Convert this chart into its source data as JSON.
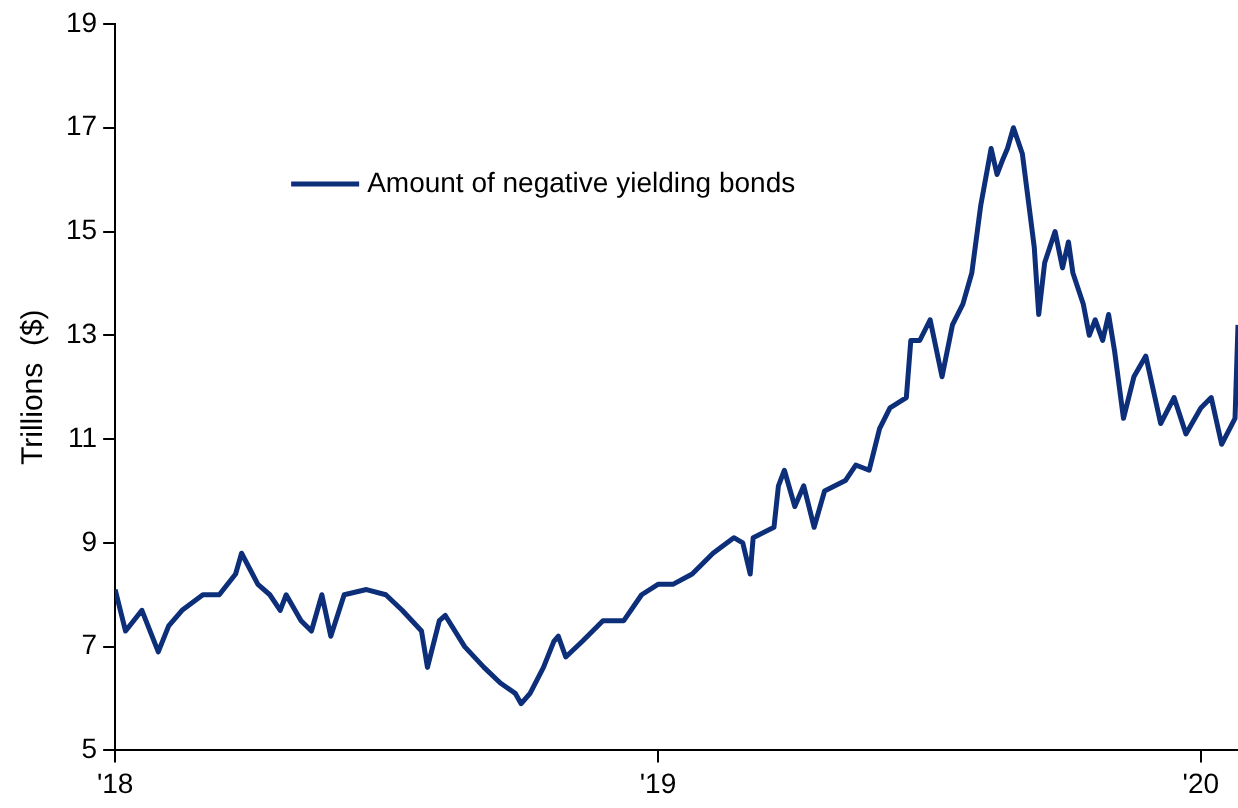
{
  "chart_data": {
    "type": "line",
    "ylabel": "Trillions  ($)",
    "legend": "top left",
    "grid": false,
    "marker": "none",
    "line_style": "solid",
    "xlim": [
      "2018-01-01",
      "2020-01-26"
    ],
    "xticks": [
      {
        "value": "2018-01-01",
        "label": "'18"
      },
      {
        "value": "2019-01-01",
        "label": "'19"
      },
      {
        "value": "2020-01-01",
        "label": "'20"
      }
    ],
    "ylim": [
      5,
      19
    ],
    "yticks": [
      5,
      7,
      9,
      11,
      13,
      15,
      17,
      19
    ],
    "series": [
      {
        "name": "Amount of negative yielding bonds",
        "color": "#0d2f7a",
        "x": [
          "2018-01-01",
          "2018-01-08",
          "2018-01-19",
          "2018-01-30",
          "2018-02-06",
          "2018-02-15",
          "2018-03-01",
          "2018-03-12",
          "2018-03-23",
          "2018-03-27",
          "2018-04-07",
          "2018-04-15",
          "2018-04-22",
          "2018-04-26",
          "2018-05-06",
          "2018-05-13",
          "2018-05-20",
          "2018-05-26",
          "2018-06-04",
          "2018-06-19",
          "2018-07-02",
          "2018-07-13",
          "2018-07-26",
          "2018-07-30",
          "2018-08-07",
          "2018-08-11",
          "2018-08-24",
          "2018-09-06",
          "2018-09-17",
          "2018-09-27",
          "2018-10-01",
          "2018-10-07",
          "2018-10-16",
          "2018-10-23",
          "2018-10-26",
          "2018-10-31",
          "2018-11-11",
          "2018-11-25",
          "2018-12-09",
          "2018-12-21",
          "2019-01-01",
          "2019-01-11",
          "2019-01-24",
          "2019-02-07",
          "2019-02-21",
          "2019-02-27",
          "2019-03-04",
          "2019-03-06",
          "2019-03-20",
          "2019-03-23",
          "2019-03-27",
          "2019-04-03",
          "2019-04-09",
          "2019-04-16",
          "2019-04-23",
          "2019-05-07",
          "2019-05-14",
          "2019-05-23",
          "2019-05-30",
          "2019-06-06",
          "2019-06-17",
          "2019-06-20",
          "2019-06-26",
          "2019-07-03",
          "2019-07-11",
          "2019-07-18",
          "2019-07-25",
          "2019-07-31",
          "2019-08-06",
          "2019-08-13",
          "2019-08-17",
          "2019-08-21",
          "2019-08-24",
          "2019-08-28",
          "2019-09-03",
          "2019-09-07",
          "2019-09-11",
          "2019-09-14",
          "2019-09-18",
          "2019-09-25",
          "2019-09-30",
          "2019-10-04",
          "2019-10-07",
          "2019-10-14",
          "2019-10-18",
          "2019-10-22",
          "2019-10-27",
          "2019-10-31",
          "2019-11-04",
          "2019-11-10",
          "2019-11-17",
          "2019-11-25",
          "2019-12-05",
          "2019-12-14",
          "2019-12-22",
          "2020-01-01",
          "2020-01-08",
          "2020-01-15",
          "2020-01-24",
          "2020-01-26"
        ],
        "values": [
          8.1,
          7.3,
          7.7,
          6.9,
          7.4,
          7.7,
          8.0,
          8.0,
          8.4,
          8.8,
          8.2,
          8.0,
          7.7,
          8.0,
          7.5,
          7.3,
          8.0,
          7.2,
          8.0,
          8.1,
          8.0,
          7.7,
          7.3,
          6.6,
          7.5,
          7.6,
          7.0,
          6.6,
          6.3,
          6.1,
          5.9,
          6.1,
          6.6,
          7.1,
          7.2,
          6.8,
          7.1,
          7.5,
          7.5,
          8.0,
          8.2,
          8.2,
          8.4,
          8.8,
          9.1,
          9.0,
          8.4,
          9.1,
          9.3,
          10.1,
          10.4,
          9.7,
          10.1,
          9.3,
          10.0,
          10.2,
          10.5,
          10.4,
          11.2,
          11.6,
          11.8,
          12.9,
          12.9,
          13.3,
          12.2,
          13.2,
          13.6,
          14.2,
          15.5,
          16.6,
          16.1,
          16.4,
          16.6,
          17.0,
          16.5,
          15.6,
          14.7,
          13.4,
          14.4,
          15.0,
          14.3,
          14.8,
          14.2,
          13.6,
          13.0,
          13.3,
          12.9,
          13.4,
          12.7,
          11.4,
          12.2,
          12.6,
          11.3,
          11.8,
          11.1,
          11.6,
          11.8,
          10.9,
          11.4,
          13.2
        ]
      }
    ]
  }
}
